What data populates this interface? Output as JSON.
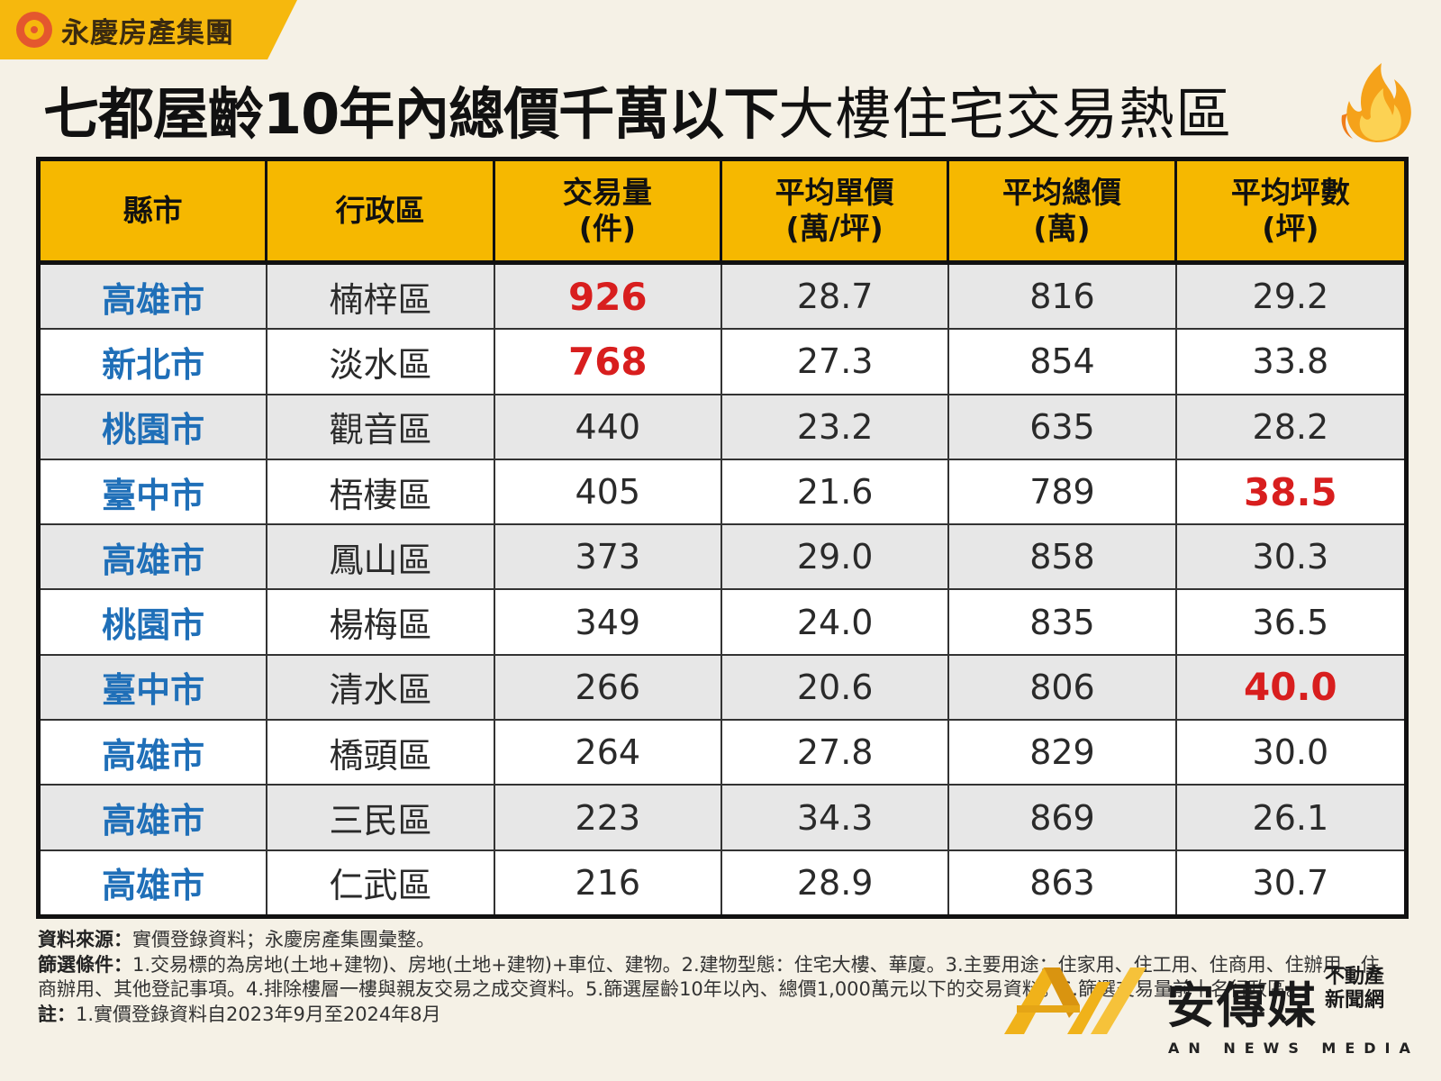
{
  "brand": {
    "logo_icon": "yungching-logo-icon",
    "name": "永慶房產集團"
  },
  "title": {
    "bold": "七都屋齡10年內總價千萬以下",
    "light": "大樓住宅交易熱區",
    "icon": "flame-icon"
  },
  "table": {
    "headers": [
      {
        "line1": "縣市",
        "line2": ""
      },
      {
        "line1": "行政區",
        "line2": ""
      },
      {
        "line1": "交易量",
        "line2": "(件)"
      },
      {
        "line1": "平均單價",
        "line2": "(萬/坪)"
      },
      {
        "line1": "平均總價",
        "line2": "(萬)"
      },
      {
        "line1": "平均坪數",
        "line2": "(坪)"
      }
    ],
    "rows": [
      {
        "city": "高雄市",
        "district": "楠梓區",
        "volume": "926",
        "unit_price": "28.7",
        "total_price": "816",
        "area": "29.2"
      },
      {
        "city": "新北市",
        "district": "淡水區",
        "volume": "768",
        "unit_price": "27.3",
        "total_price": "854",
        "area": "33.8"
      },
      {
        "city": "桃園市",
        "district": "觀音區",
        "volume": "440",
        "unit_price": "23.2",
        "total_price": "635",
        "area": "28.2"
      },
      {
        "city": "臺中市",
        "district": "梧棲區",
        "volume": "405",
        "unit_price": "21.6",
        "total_price": "789",
        "area": "38.5"
      },
      {
        "city": "高雄市",
        "district": "鳳山區",
        "volume": "373",
        "unit_price": "29.0",
        "total_price": "858",
        "area": "30.3"
      },
      {
        "city": "桃園市",
        "district": "楊梅區",
        "volume": "349",
        "unit_price": "24.0",
        "total_price": "835",
        "area": "36.5"
      },
      {
        "city": "臺中市",
        "district": "清水區",
        "volume": "266",
        "unit_price": "20.6",
        "total_price": "806",
        "area": "40.0"
      },
      {
        "city": "高雄市",
        "district": "橋頭區",
        "volume": "264",
        "unit_price": "27.8",
        "total_price": "829",
        "area": "30.0"
      },
      {
        "city": "高雄市",
        "district": "三民區",
        "volume": "223",
        "unit_price": "34.3",
        "total_price": "869",
        "area": "26.1"
      },
      {
        "city": "高雄市",
        "district": "仁武區",
        "volume": "216",
        "unit_price": "28.9",
        "total_price": "863",
        "area": "30.7"
      }
    ],
    "highlight_color": "#d81e1e",
    "city_color": "#1f6fb8",
    "header_color": "#f6b800"
  },
  "notes": {
    "source_label": "資料來源：",
    "source_text": "實價登錄資料；永慶房產集團彙整。",
    "filter_label": "篩選條件：",
    "filter_text": "1.交易標的為房地(土地+建物)、房地(土地+建物)+車位、建物。2.建物型態：住宅大樓、華廈。3.主要用途：住家用、住工用、住商用、住辦用、住商辦用、其他登記事項。4.排除樓層一樓與親友交易之成交資料。5.篩選屋齡10年以內、總價1,000萬元以下的交易資料。6.篩選交易量前十名行政區。",
    "note_label": "註：",
    "note_text": "1.實價登錄資料自2023年9月至2024年8月"
  },
  "watermark": {
    "name": "安傳媒",
    "side_line1": "不動產",
    "side_line2": "新聞網",
    "sub": "AN NEWS MEDIA",
    "mark_icon": "an-news-logo-icon"
  }
}
